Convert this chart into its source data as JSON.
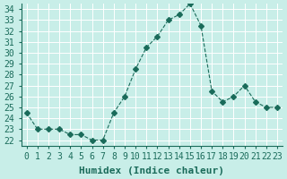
{
  "x": [
    0,
    1,
    2,
    3,
    4,
    5,
    6,
    7,
    8,
    9,
    10,
    11,
    12,
    13,
    14,
    15,
    16,
    17,
    18,
    19,
    20,
    21,
    22,
    23
  ],
  "y": [
    24.5,
    23.0,
    23.0,
    23.0,
    22.5,
    22.5,
    22.0,
    22.0,
    24.5,
    26.0,
    28.5,
    30.5,
    31.5,
    33.0,
    33.5,
    34.5,
    32.5,
    26.5,
    25.5,
    26.0,
    27.0,
    25.5,
    25.0,
    25.0
  ],
  "line_color": "#1a6b5a",
  "marker": "D",
  "marker_size": 3,
  "bg_color": "#c8eee8",
  "grid_color": "#ffffff",
  "xlabel": "Humidex (Indice chaleur)",
  "xlim": [
    -0.5,
    23.5
  ],
  "ylim": [
    21.5,
    34.5
  ],
  "yticks": [
    22,
    23,
    24,
    25,
    26,
    27,
    28,
    29,
    30,
    31,
    32,
    33,
    34
  ],
  "xticks": [
    0,
    1,
    2,
    3,
    4,
    5,
    6,
    7,
    8,
    9,
    10,
    11,
    12,
    13,
    14,
    15,
    16,
    17,
    18,
    19,
    20,
    21,
    22,
    23
  ],
  "tick_label_size": 7,
  "xlabel_size": 8,
  "axis_color": "#1a6b5a",
  "linewidth": 0.8
}
